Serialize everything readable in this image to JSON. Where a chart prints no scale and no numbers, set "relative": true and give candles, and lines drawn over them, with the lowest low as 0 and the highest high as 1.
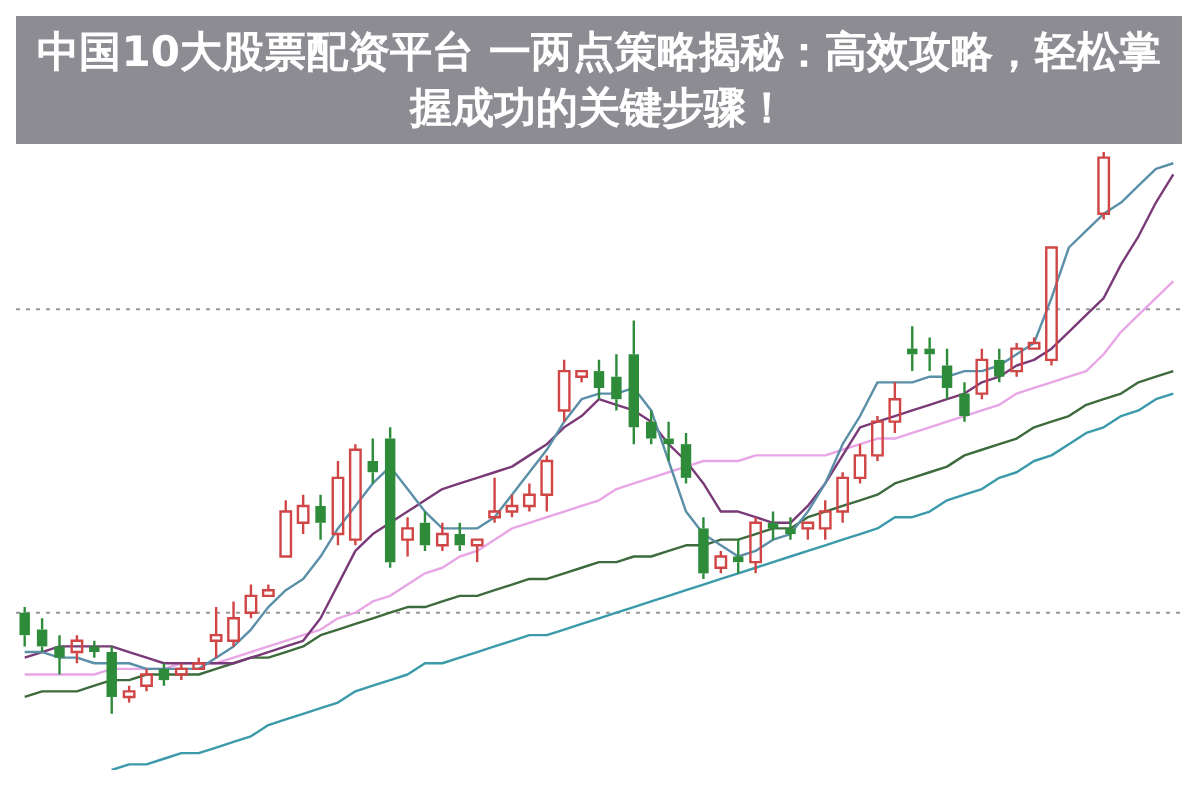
{
  "chart_data": {
    "type": "candlestick",
    "title": "中国10大股票配资平台 一两点策略揭秘：高效攻略，轻松掌握成功的关键步骤！",
    "relative": true,
    "marker": "none",
    "legend": false,
    "categories": [
      null,
      null,
      null,
      null,
      null,
      null,
      null,
      null,
      null,
      null,
      null,
      null,
      null,
      null,
      null,
      null,
      null,
      null,
      null,
      null,
      null,
      null,
      null,
      null,
      null,
      null,
      null,
      null,
      null,
      null,
      null,
      null,
      null,
      null,
      null,
      null,
      null,
      null,
      null,
      null,
      null,
      null,
      null,
      null,
      null,
      null,
      null,
      null,
      null,
      null,
      null,
      null,
      null,
      null,
      null,
      null,
      null,
      null,
      null,
      null,
      null,
      null,
      null,
      null,
      null,
      null,
      null
    ],
    "ohlc": [
      [
        0.18,
        0.19,
        0.12,
        0.14
      ],
      [
        0.15,
        0.17,
        0.11,
        0.12
      ],
      [
        0.12,
        0.14,
        0.07,
        0.1
      ],
      [
        0.11,
        0.14,
        0.09,
        0.13
      ],
      [
        0.12,
        0.13,
        0.1,
        0.11
      ],
      [
        0.11,
        0.12,
        0,
        0.03
      ],
      [
        0.03,
        0.05,
        0.02,
        0.04
      ],
      [
        0.05,
        0.08,
        0.04,
        0.07
      ],
      [
        0.08,
        0.09,
        0.05,
        0.06
      ],
      [
        0.07,
        0.09,
        0.06,
        0.08
      ],
      [
        0.08,
        0.1,
        0.08,
        0.09
      ],
      [
        0.13,
        0.19,
        0.1,
        0.14
      ],
      [
        0.13,
        0.2,
        0.12,
        0.17
      ],
      [
        0.18,
        0.23,
        0.17,
        0.21
      ],
      [
        0.21,
        0.23,
        0.21,
        0.22
      ],
      [
        0.28,
        0.38,
        0.28,
        0.36
      ],
      [
        0.34,
        0.39,
        0.32,
        0.37
      ],
      [
        0.37,
        0.39,
        0.31,
        0.34
      ],
      [
        0.32,
        0.45,
        0.3,
        0.42
      ],
      [
        0.31,
        0.48,
        0.3,
        0.47
      ],
      [
        0.45,
        0.49,
        0.41,
        0.43
      ],
      [
        0.49,
        0.51,
        0.26,
        0.27
      ],
      [
        0.31,
        0.35,
        0.28,
        0.33
      ],
      [
        0.34,
        0.36,
        0.29,
        0.3
      ],
      [
        0.3,
        0.34,
        0.29,
        0.32
      ],
      [
        0.32,
        0.34,
        0.29,
        0.3
      ],
      [
        0.3,
        0.31,
        0.27,
        0.31
      ],
      [
        0.35,
        0.42,
        0.34,
        0.36
      ],
      [
        0.36,
        0.39,
        0.35,
        0.37
      ],
      [
        0.37,
        0.41,
        0.36,
        0.39
      ],
      [
        0.39,
        0.46,
        0.36,
        0.45
      ],
      [
        0.54,
        0.63,
        0.52,
        0.61
      ],
      [
        0.6,
        0.61,
        0.59,
        0.61
      ],
      [
        0.61,
        0.63,
        0.56,
        0.58
      ],
      [
        0.6,
        0.64,
        0.54,
        0.56
      ],
      [
        0.64,
        0.7,
        0.48,
        0.51
      ],
      [
        0.52,
        0.54,
        0.48,
        0.49
      ],
      [
        0.49,
        0.52,
        0.45,
        0.48
      ],
      [
        0.48,
        0.5,
        0.41,
        0.42
      ],
      [
        0.33,
        0.35,
        0.24,
        0.25
      ],
      [
        0.26,
        0.29,
        0.25,
        0.28
      ],
      [
        0.28,
        0.31,
        0.25,
        0.27
      ],
      [
        0.27,
        0.35,
        0.25,
        0.34
      ],
      [
        0.34,
        0.36,
        0.31,
        0.33
      ],
      [
        0.33,
        0.35,
        0.31,
        0.32
      ],
      [
        0.33,
        0.34,
        0.31,
        0.34
      ],
      [
        0.33,
        0.38,
        0.31,
        0.36
      ],
      [
        0.36,
        0.43,
        0.34,
        0.42
      ],
      [
        0.42,
        0.48,
        0.41,
        0.46
      ],
      [
        0.46,
        0.53,
        0.45,
        0.52
      ],
      [
        0.52,
        0.59,
        0.5,
        0.56
      ],
      [
        0.65,
        0.69,
        0.61,
        0.64
      ],
      [
        0.65,
        0.67,
        0.61,
        0.64
      ],
      [
        0.62,
        0.65,
        0.56,
        0.58
      ],
      [
        0.57,
        0.59,
        0.52,
        0.53
      ],
      [
        0.57,
        0.65,
        0.56,
        0.63
      ],
      [
        0.63,
        0.65,
        0.59,
        0.6
      ],
      [
        0.61,
        0.66,
        0.6,
        0.65
      ],
      [
        0.65,
        0.67,
        0.65,
        0.66
      ],
      [
        0.63,
        0.83,
        0.62,
        0.83
      ],
      null,
      null,
      [
        0.89,
        1,
        0.88,
        0.99
      ],
      null,
      null,
      null,
      null
    ],
    "colors": [
      "#2e8b3a",
      "#2e8b3a",
      "#2e8b3a",
      "#d04545",
      "#2e8b3a",
      "#2e8b3a",
      "#d04545",
      "#d04545",
      "#2e8b3a",
      "#d04545",
      "#d04545",
      "#d04545",
      "#d04545",
      "#d04545",
      "#d04545",
      "#d04545",
      "#d04545",
      "#2e8b3a",
      "#d04545",
      "#d04545",
      "#2e8b3a",
      "#2e8b3a",
      "#d04545",
      "#2e8b3a",
      "#d04545",
      "#2e8b3a",
      "#d04545",
      "#d04545",
      "#d04545",
      "#d04545",
      "#d04545",
      "#d04545",
      "#d04545",
      "#2e8b3a",
      "#2e8b3a",
      "#2e8b3a",
      "#2e8b3a",
      "#2e8b3a",
      "#2e8b3a",
      "#2e8b3a",
      "#d04545",
      "#2e8b3a",
      "#d04545",
      "#2e8b3a",
      "#2e8b3a",
      "#d04545",
      "#d04545",
      "#d04545",
      "#d04545",
      "#d04545",
      "#d04545",
      "#2e8b3a",
      "#2e8b3a",
      "#2e8b3a",
      "#2e8b3a",
      "#d04545",
      "#2e8b3a",
      "#d04545",
      "#d04545",
      "#d04545",
      null,
      null,
      "#d04545",
      null,
      null,
      null,
      null
    ],
    "series": [
      {
        "type": "line",
        "color": "#5b8fa8",
        "values": [
          0.11,
          0.11,
          0.1,
          0.1,
          0.09,
          0.09,
          0.09,
          0.08,
          0.08,
          0.08,
          0.08,
          0.1,
          0.12,
          0.15,
          0.19,
          0.22,
          0.24,
          0.28,
          0.33,
          0.37,
          0.41,
          0.44,
          0.4,
          0.36,
          0.33,
          0.33,
          0.33,
          0.35,
          0.39,
          0.43,
          0.47,
          0.52,
          0.56,
          0.57,
          0.57,
          0.58,
          0.54,
          0.45,
          0.36,
          0.32,
          0.3,
          0.28,
          0.29,
          0.31,
          0.32,
          0.36,
          0.41,
          0.48,
          0.53,
          0.59,
          0.59,
          0.59,
          0.6,
          0.6,
          0.61,
          0.61,
          0.62,
          0.64,
          0.66,
          0.74,
          0.83,
          0.86,
          0.89,
          0.91,
          0.94,
          0.97,
          0.98
        ]
      },
      {
        "type": "line",
        "color": "#7a3a78",
        "values": [
          0.1,
          0.11,
          0.12,
          0.12,
          0.12,
          0.12,
          0.11,
          0.1,
          0.09,
          0.09,
          0.09,
          0.09,
          0.09,
          0.1,
          0.11,
          0.12,
          0.13,
          0.17,
          0.23,
          0.29,
          0.32,
          0.34,
          0.36,
          0.38,
          0.4,
          0.41,
          0.42,
          0.43,
          0.44,
          0.46,
          0.48,
          0.51,
          0.53,
          0.56,
          0.55,
          0.54,
          0.52,
          0.48,
          0.45,
          0.41,
          0.36,
          0.36,
          0.35,
          0.34,
          0.34,
          0.37,
          0.41,
          0.46,
          0.51,
          0.52,
          0.53,
          0.54,
          0.55,
          0.56,
          0.57,
          0.59,
          0.6,
          0.62,
          0.63,
          0.65,
          0.68,
          0.71,
          0.74,
          0.8,
          0.85,
          0.91,
          0.96
        ]
      },
      {
        "type": "line",
        "color": "#e8a6e6",
        "values": [
          0.07,
          0.07,
          0.07,
          0.07,
          0.07,
          0.08,
          0.08,
          0.08,
          0.08,
          0.09,
          0.09,
          0.09,
          0.1,
          0.11,
          0.12,
          0.13,
          0.14,
          0.15,
          0.17,
          0.18,
          0.2,
          0.21,
          0.23,
          0.25,
          0.26,
          0.28,
          0.29,
          0.31,
          0.33,
          0.34,
          0.35,
          0.36,
          0.37,
          0.38,
          0.4,
          0.41,
          0.42,
          0.43,
          0.44,
          0.45,
          0.45,
          0.45,
          0.46,
          0.46,
          0.46,
          0.46,
          0.46,
          0.47,
          0.48,
          0.49,
          0.49,
          0.5,
          0.51,
          0.52,
          0.53,
          0.54,
          0.55,
          0.57,
          0.58,
          0.59,
          0.6,
          0.61,
          0.64,
          0.68,
          0.71,
          0.74,
          0.77
        ]
      },
      {
        "type": "line",
        "color": "#3d6b3d",
        "values": [
          0.03,
          0.04,
          0.04,
          0.04,
          0.05,
          0.06,
          0.06,
          0.07,
          0.07,
          0.07,
          0.07,
          0.08,
          0.09,
          0.1,
          0.1,
          0.11,
          0.12,
          0.14,
          0.15,
          0.16,
          0.17,
          0.18,
          0.19,
          0.19,
          0.2,
          0.21,
          0.21,
          0.22,
          0.23,
          0.24,
          0.24,
          0.25,
          0.26,
          0.27,
          0.27,
          0.28,
          0.28,
          0.29,
          0.3,
          0.3,
          0.31,
          0.31,
          0.32,
          0.33,
          0.33,
          0.35,
          0.36,
          0.37,
          0.38,
          0.39,
          0.41,
          0.42,
          0.43,
          0.44,
          0.46,
          0.47,
          0.48,
          0.49,
          0.51,
          0.52,
          0.53,
          0.55,
          0.56,
          0.57,
          0.59,
          0.6,
          0.61
        ]
      },
      {
        "type": "line",
        "color": "#3a9aaa",
        "values": [
          null,
          null,
          null,
          null,
          null,
          -0.1,
          -0.09,
          -0.09,
          -0.08,
          -0.07,
          -0.07,
          -0.06,
          -0.05,
          -0.04,
          -0.02,
          -0.01,
          0.0,
          0.01,
          0.02,
          0.04,
          0.05,
          0.06,
          0.07,
          0.09,
          0.09,
          0.1,
          0.11,
          0.12,
          0.13,
          0.14,
          0.14,
          0.15,
          0.16,
          0.17,
          0.18,
          0.19,
          0.2,
          0.21,
          0.22,
          0.23,
          0.24,
          0.25,
          0.26,
          0.27,
          0.28,
          0.29,
          0.3,
          0.31,
          0.32,
          0.33,
          0.35,
          0.35,
          0.36,
          0.38,
          0.39,
          0.4,
          0.42,
          0.43,
          0.45,
          0.46,
          0.48,
          0.5,
          0.51,
          0.53,
          0.54,
          0.56,
          0.57
        ]
      }
    ],
    "ref_lines": [
      {
        "axis": "y",
        "value": 0.72,
        "color": "#999999",
        "line_style": "dotted"
      },
      {
        "axis": "y",
        "value": 0.18,
        "color": "#999999",
        "line_style": "dotted"
      }
    ]
  }
}
